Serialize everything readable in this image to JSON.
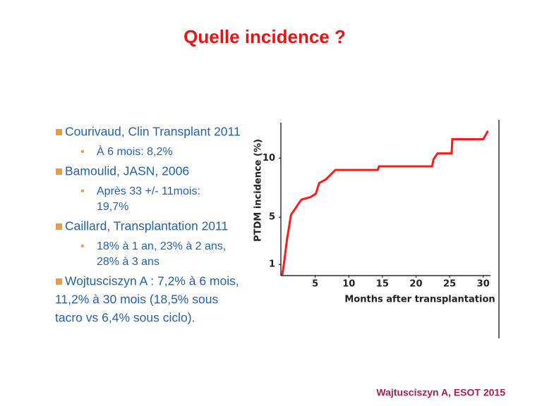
{
  "title": "Quelle incidence ?",
  "bullets": [
    {
      "lines": [
        "Courivaud, Clin Transplant 2011"
      ],
      "sub": [
        [
          "À 6 mois: 8,2%"
        ]
      ]
    },
    {
      "lines": [
        "Bamoulid, JASN, 2006"
      ],
      "sub": [
        [
          "Après 33 +/- 11mois:",
          "19,7%"
        ]
      ]
    },
    {
      "lines": [
        "Caillard, Transplantation 2011"
      ],
      "sub": [
        [
          "18% à 1 an, 23% à 2 ans,",
          "28% à 3 ans"
        ]
      ]
    },
    {
      "lines": [
        "Wojtusciszyn A : 7,2% à 6 mois,",
        "11,2% à 30 mois (18,5% sous",
        "tacro vs 6,4% sous ciclo)."
      ],
      "sub": []
    }
  ],
  "footer": "Wajtusciszyn A, ESOT 2015",
  "chart_data": {
    "type": "line",
    "x_label": "Months after transplantation",
    "y_label": "PTDM incidence (%)",
    "x": [
      0.1,
      0.4,
      0.8,
      1.4,
      2,
      2.7,
      3,
      4.3,
      5.1,
      5.6,
      6.6,
      8,
      14.3,
      14.5,
      22.4,
      22.6,
      23.2,
      25.3,
      25.4,
      30,
      30.7
    ],
    "series": [
      {
        "color": "#ff1a1a",
        "values": [
          0.1,
          1.3,
          3.1,
          5.2,
          5.7,
          6.3,
          6.5,
          6.7,
          7.0,
          7.9,
          8.2,
          9.0,
          9.0,
          9.3,
          9.3,
          9.9,
          10.4,
          10.4,
          11.6,
          11.6,
          12.3
        ]
      }
    ],
    "xlim": [
      0,
      31.5
    ],
    "ylim": [
      0,
      13
    ],
    "xticks": [
      5,
      10,
      15,
      20,
      25,
      30
    ],
    "yticks": [
      1,
      5,
      10
    ]
  }
}
